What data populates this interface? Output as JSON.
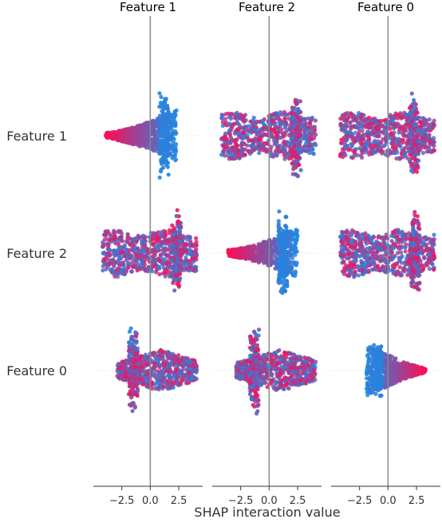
{
  "chart_data": {
    "type": "scatter",
    "subtype": "shap-interaction-beeswarm-matrix",
    "column_titles": [
      "Feature 1",
      "Feature 2",
      "Feature 0"
    ],
    "row_labels": [
      "Feature 1",
      "Feature 2",
      "Feature 0"
    ],
    "xlabel": "SHAP interaction value",
    "xlim": [
      -5,
      4.6
    ],
    "x_ticks": [
      -2.5,
      0.0,
      2.5
    ],
    "x_tick_labels": [
      "−2.5",
      "0.0",
      "2.5"
    ],
    "color_scale": {
      "low": "#1e88e5",
      "high": "#ff0d57"
    },
    "reference_line_x": 0,
    "cells": [
      [
        {
          "shape": "diag",
          "min": -3.9,
          "max": 2.3,
          "peak": 1.2
        },
        {
          "shape": "band",
          "min": -4.2,
          "max": 4.1,
          "peak": 2.4
        },
        {
          "shape": "band",
          "min": -4.2,
          "max": 4.1,
          "peak": 2.3
        }
      ],
      [
        {
          "shape": "band",
          "min": -4.2,
          "max": 4.1,
          "peak": 2.3
        },
        {
          "shape": "diag",
          "min": -3.6,
          "max": 2.5,
          "peak": 1.2
        },
        {
          "shape": "band",
          "min": -4.2,
          "max": 4.1,
          "peak": 2.4
        }
      ],
      [
        {
          "shape": "band0",
          "min": -2.9,
          "max": 4.1,
          "peak": -1.5
        },
        {
          "shape": "band0",
          "min": -2.9,
          "max": 4.1,
          "peak": -1.3
        },
        {
          "shape": "diag0",
          "min": -1.9,
          "max": 3.3,
          "peak": -0.9
        }
      ]
    ]
  }
}
